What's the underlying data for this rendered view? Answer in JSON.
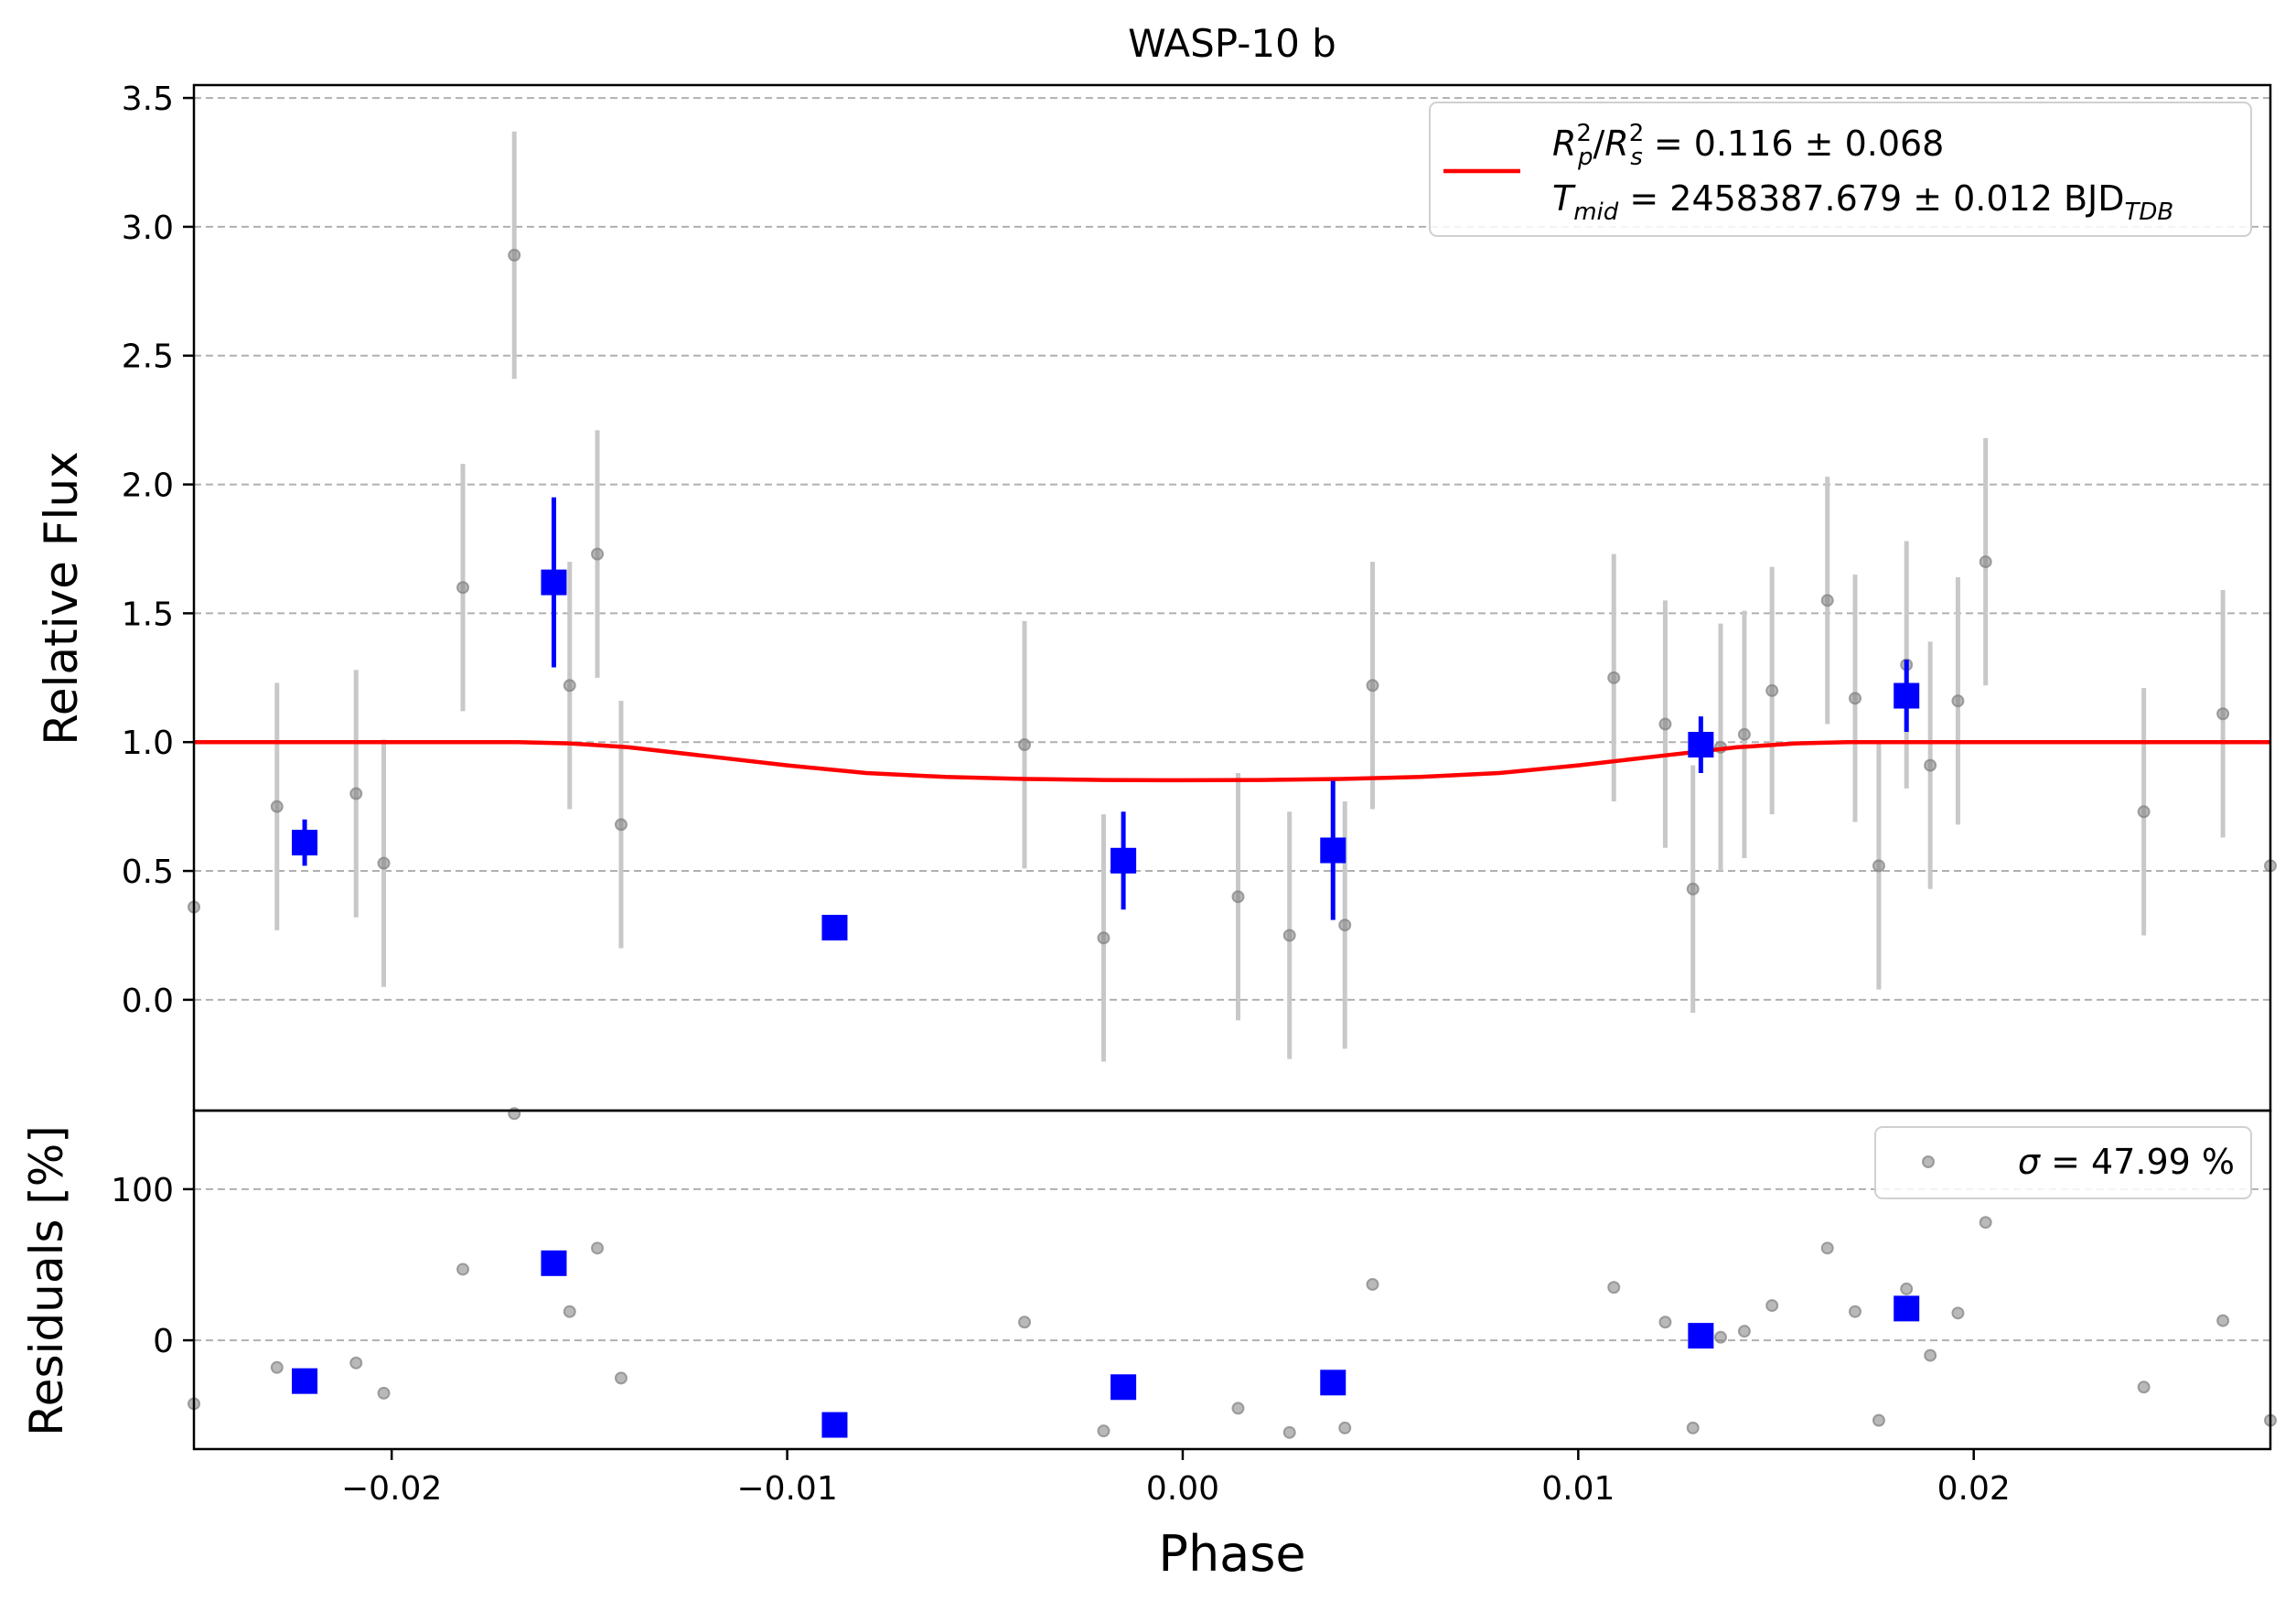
{
  "chart_data": [
    {
      "type": "scatter",
      "panel": "main",
      "title": "WASP-10 b",
      "xlabel": "",
      "ylabel": "Relative Flux",
      "xlim": [
        -0.025,
        0.0275
      ],
      "ylim": [
        -0.43,
        3.55
      ],
      "grid": "y-dashed",
      "y_ticks": [
        0.0,
        0.5,
        1.0,
        1.5,
        2.0,
        2.5,
        3.0,
        3.5
      ],
      "y_tick_labels": [
        "0.0",
        "0.5",
        "1.0",
        "1.5",
        "2.0",
        "2.5",
        "3.0",
        "3.5"
      ],
      "legend": {
        "placement": "top-right",
        "line1": "R_p^2/R_s^2 = 0.116 ± 0.068",
        "line1_parts": {
          "a": "R",
          "a_sup": "2",
          "a_sub": "p",
          "slash": "/",
          "b": "R",
          "b_sup": "2",
          "b_sub": "s",
          "rest": " = 0.116 ± 0.068"
        },
        "line2": "T_mid = 2458387.679 ± 0.012 BJD_TDB",
        "line2_parts": {
          "a": "T",
          "a_sub": "mid",
          "mid": " = 2458387.679 ± 0.012 BJD",
          "b_sub": "TDB"
        }
      },
      "colors": {
        "raw": "#808080",
        "raw_err": "#c8c8c8",
        "binned": "#0000ff",
        "model": "#ff0000"
      },
      "raw_points": [
        {
          "x": -0.025,
          "y": 0.36
        },
        {
          "x": -0.0229,
          "y": 0.75,
          "err": 0.48
        },
        {
          "x": -0.0209,
          "y": 0.8,
          "err": 0.48
        },
        {
          "x": -0.0202,
          "y": 0.53,
          "err": 0.48
        },
        {
          "x": -0.0182,
          "y": 1.6,
          "err": 0.48
        },
        {
          "x": -0.0169,
          "y": 2.89,
          "err": 0.48
        },
        {
          "x": -0.0155,
          "y": 1.22,
          "err": 0.48
        },
        {
          "x": -0.0148,
          "y": 1.73,
          "err": 0.48
        },
        {
          "x": -0.0142,
          "y": 0.68,
          "err": 0.48
        },
        {
          "x": -0.004,
          "y": 0.99,
          "err": 0.48
        },
        {
          "x": -0.002,
          "y": 0.24,
          "err": 0.48
        },
        {
          "x": 0.0014,
          "y": 0.4,
          "err": 0.48
        },
        {
          "x": 0.0027,
          "y": 0.25,
          "err": 0.48
        },
        {
          "x": 0.0041,
          "y": 0.29,
          "err": 0.48
        },
        {
          "x": 0.0048,
          "y": 1.22,
          "err": 0.48
        },
        {
          "x": 0.0109,
          "y": 1.25,
          "err": 0.48
        },
        {
          "x": 0.0122,
          "y": 1.07,
          "err": 0.48
        },
        {
          "x": 0.0129,
          "y": 0.43,
          "err": 0.48
        },
        {
          "x": 0.0136,
          "y": 0.98,
          "err": 0.48
        },
        {
          "x": 0.0142,
          "y": 1.03,
          "err": 0.48
        },
        {
          "x": 0.0149,
          "y": 1.2,
          "err": 0.48
        },
        {
          "x": 0.0163,
          "y": 1.55,
          "err": 0.48
        },
        {
          "x": 0.017,
          "y": 1.17,
          "err": 0.48
        },
        {
          "x": 0.0176,
          "y": 0.52,
          "err": 0.48
        },
        {
          "x": 0.0183,
          "y": 1.3,
          "err": 0.48
        },
        {
          "x": 0.0189,
          "y": 0.91,
          "err": 0.48
        },
        {
          "x": 0.0196,
          "y": 1.16,
          "err": 0.48
        },
        {
          "x": 0.0203,
          "y": 1.7,
          "err": 0.48
        },
        {
          "x": 0.0243,
          "y": 0.73,
          "err": 0.48
        },
        {
          "x": 0.0263,
          "y": 1.11,
          "err": 0.48
        },
        {
          "x": 0.0275,
          "y": 0.52
        }
      ],
      "binned_points": [
        {
          "x": -0.0222,
          "y": 0.61,
          "err": 0.09
        },
        {
          "x": -0.0159,
          "y": 1.62,
          "err": 0.33
        },
        {
          "x": -0.0088,
          "y": 0.28,
          "err": 0.0
        },
        {
          "x": -0.0015,
          "y": 0.54,
          "err": 0.19
        },
        {
          "x": 0.0038,
          "y": 0.58,
          "err": 0.27
        },
        {
          "x": 0.0131,
          "y": 0.99,
          "err": 0.11
        },
        {
          "x": 0.0183,
          "y": 1.18,
          "err": 0.14
        }
      ],
      "model": {
        "x": [
          -0.025,
          -0.0168,
          -0.0155,
          -0.014,
          -0.012,
          -0.01,
          -0.008,
          -0.006,
          -0.004,
          -0.002,
          0.0,
          0.002,
          0.004,
          0.006,
          0.008,
          0.01,
          0.012,
          0.014,
          0.0155,
          0.0168,
          0.0275
        ],
        "y": [
          1.0,
          1.0,
          0.995,
          0.98,
          0.945,
          0.91,
          0.88,
          0.865,
          0.857,
          0.853,
          0.852,
          0.853,
          0.857,
          0.865,
          0.88,
          0.91,
          0.945,
          0.98,
          0.995,
          1.0,
          1.0
        ]
      }
    },
    {
      "type": "scatter",
      "panel": "residuals",
      "xlabel": "Phase",
      "ylabel": "Residuals [%]",
      "xlim": [
        -0.025,
        0.0275
      ],
      "ylim": [
        -72,
        152
      ],
      "grid": "y-dashed",
      "x_ticks": [
        -0.02,
        -0.01,
        0.0,
        0.01,
        0.02
      ],
      "x_tick_labels": [
        "−0.02",
        "−0.01",
        "0.00",
        "0.01",
        "0.02"
      ],
      "y_ticks": [
        0,
        100
      ],
      "y_tick_labels": [
        "0",
        "100"
      ],
      "legend": {
        "placement": "top-right",
        "prefix": "σ",
        "label": " = 47.99 %"
      },
      "raw_points": [
        {
          "x": -0.025,
          "y": -42
        },
        {
          "x": -0.0229,
          "y": -18
        },
        {
          "x": -0.0209,
          "y": -15
        },
        {
          "x": -0.0202,
          "y": -35
        },
        {
          "x": -0.0182,
          "y": 47
        },
        {
          "x": -0.0169,
          "y": 150
        },
        {
          "x": -0.0155,
          "y": 19
        },
        {
          "x": -0.0148,
          "y": 61
        },
        {
          "x": -0.0142,
          "y": -25
        },
        {
          "x": -0.004,
          "y": 12
        },
        {
          "x": -0.002,
          "y": -60
        },
        {
          "x": 0.0014,
          "y": -45
        },
        {
          "x": 0.0027,
          "y": -61
        },
        {
          "x": 0.0041,
          "y": -58
        },
        {
          "x": 0.0048,
          "y": 37
        },
        {
          "x": 0.0109,
          "y": 35
        },
        {
          "x": 0.0122,
          "y": 12
        },
        {
          "x": 0.0129,
          "y": -58
        },
        {
          "x": 0.0136,
          "y": 2
        },
        {
          "x": 0.0142,
          "y": 6
        },
        {
          "x": 0.0149,
          "y": 23
        },
        {
          "x": 0.0163,
          "y": 61
        },
        {
          "x": 0.017,
          "y": 19
        },
        {
          "x": 0.0176,
          "y": -53
        },
        {
          "x": 0.0183,
          "y": 34
        },
        {
          "x": 0.0189,
          "y": -10
        },
        {
          "x": 0.0196,
          "y": 18
        },
        {
          "x": 0.0203,
          "y": 78
        },
        {
          "x": 0.0243,
          "y": -31
        },
        {
          "x": 0.0263,
          "y": 13
        },
        {
          "x": 0.0275,
          "y": -53
        }
      ],
      "binned_points": [
        {
          "x": -0.0222,
          "y": -27
        },
        {
          "x": -0.0159,
          "y": 51
        },
        {
          "x": -0.0088,
          "y": -56
        },
        {
          "x": -0.0015,
          "y": -31
        },
        {
          "x": 0.0038,
          "y": -28
        },
        {
          "x": 0.0131,
          "y": 3
        },
        {
          "x": 0.0183,
          "y": 21
        }
      ]
    }
  ]
}
